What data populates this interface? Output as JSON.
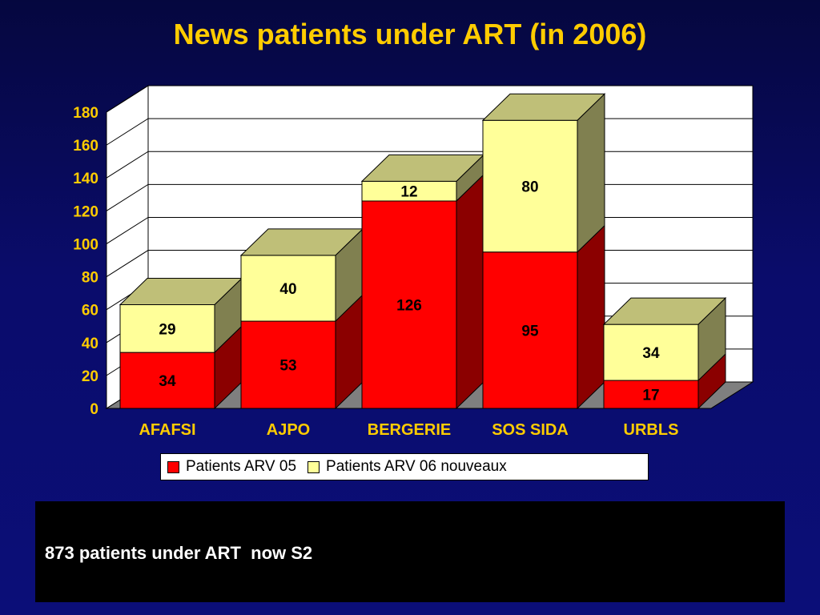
{
  "title": "News patients under ART (in 2006)",
  "chart_data": {
    "type": "bar",
    "stacked": true,
    "three_d": true,
    "categories": [
      "AFAFSI",
      "AJPO",
      "BERGERIE",
      "SOS SIDA",
      "URBLS"
    ],
    "series": [
      {
        "name": "Patients ARV 05",
        "values": [
          34,
          53,
          126,
          95,
          17
        ],
        "color": "#ff0000",
        "side_color": "#8b0000",
        "top_color": "#c00000"
      },
      {
        "name": "Patients ARV 06 nouveaux",
        "values": [
          29,
          40,
          12,
          80,
          34
        ],
        "color": "#ffff99",
        "side_color": "#808050",
        "top_color": "#bfbf78"
      }
    ],
    "y_ticks": [
      "0",
      "20",
      "40",
      "60",
      "80",
      "100",
      "120",
      "140",
      "160",
      "180"
    ],
    "ylim": [
      0,
      180
    ],
    "grid": true,
    "legend_position": "bottom",
    "tick_label_color": "#ffcc00",
    "data_label_color": "#000000"
  },
  "note": {
    "text": "873 patients under ART  now S2"
  }
}
